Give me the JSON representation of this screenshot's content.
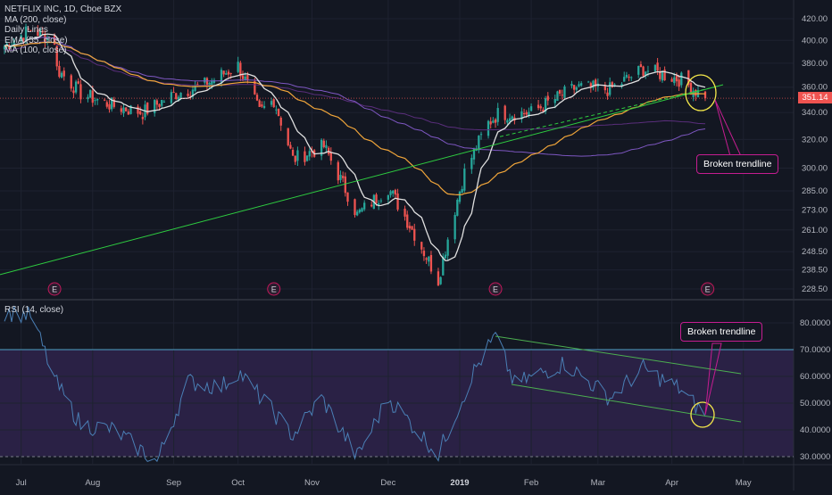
{
  "header": {
    "title": "NETFLIX INC, 1D, Cboe BZX",
    "indicators": [
      "MA (200, close)",
      "Daily Lines",
      "EMA (55, close)",
      "MA (100, close)"
    ]
  },
  "rsi_panel": {
    "label": "RSI (14, close)"
  },
  "last_price": {
    "value": "351.14",
    "color": "#ef5350"
  },
  "annotations": {
    "price": "Broken trendline",
    "rsi": "Broken trendline"
  },
  "earnings_marker": "E",
  "colors": {
    "background": "#131722",
    "up": "#26a69a",
    "down": "#ef5350",
    "ma_fast": "#e0e0e0",
    "ema55": "#f0a53a",
    "ma100": "#7e57c2",
    "ma200": "#5a2e7c",
    "trendline": "#2ecc40",
    "rsi_line": "#4a7fb5",
    "rsi_band": "#2a2145",
    "annotation_border": "#c51d91",
    "highlight": "#f4e84a"
  },
  "chart_data": [
    {
      "type": "candlestick",
      "title": "NETFLIX INC, 1D, Cboe BZX",
      "series_names": [
        "MA (200, close)",
        "Daily Lines",
        "EMA (55, close)",
        "MA (100, close)"
      ],
      "x_ticks": [
        "Jul",
        "Aug",
        "Sep",
        "Oct",
        "Nov",
        "Dec",
        "2019",
        "Feb",
        "Mar",
        "Apr",
        "May"
      ],
      "y_ticks": [
        "420.00",
        "400.00",
        "380.00",
        "360.00",
        "340.00",
        "320.00",
        "300.00",
        "285.00",
        "273.00",
        "261.00",
        "248.50",
        "238.50",
        "228.50"
      ],
      "y_axis_scale": "log",
      "last_price": 351.14,
      "earnings_markers": [
        "Jul",
        "Oct",
        "2019",
        "Apr"
      ],
      "approx_close_path": [
        {
          "date": "2018-06-25",
          "close": 395
        },
        {
          "date": "2018-07-06",
          "close": 410
        },
        {
          "date": "2018-07-16",
          "close": 400
        },
        {
          "date": "2018-07-17",
          "close": 375
        },
        {
          "date": "2018-07-27",
          "close": 355
        },
        {
          "date": "2018-08-10",
          "close": 345
        },
        {
          "date": "2018-08-22",
          "close": 340
        },
        {
          "date": "2018-09-05",
          "close": 355
        },
        {
          "date": "2018-09-17",
          "close": 362
        },
        {
          "date": "2018-10-01",
          "close": 378
        },
        {
          "date": "2018-10-10",
          "close": 340
        },
        {
          "date": "2018-10-16",
          "close": 350
        },
        {
          "date": "2018-10-24",
          "close": 306
        },
        {
          "date": "2018-11-06",
          "close": 315
        },
        {
          "date": "2018-11-20",
          "close": 270
        },
        {
          "date": "2018-12-03",
          "close": 287
        },
        {
          "date": "2018-12-24",
          "close": 233
        },
        {
          "date": "2019-01-04",
          "close": 297
        },
        {
          "date": "2019-01-14",
          "close": 332
        },
        {
          "date": "2019-01-18",
          "close": 339
        },
        {
          "date": "2019-02-01",
          "close": 340
        },
        {
          "date": "2019-02-20",
          "close": 360
        },
        {
          "date": "2019-03-06",
          "close": 358
        },
        {
          "date": "2019-03-20",
          "close": 375
        },
        {
          "date": "2019-04-05",
          "close": 366
        },
        {
          "date": "2019-04-15",
          "close": 351.14
        }
      ]
    },
    {
      "type": "line",
      "title": "RSI (14, close)",
      "y_ticks": [
        "80.0000",
        "70.0000",
        "60.0000",
        "50.0000",
        "40.0000",
        "30.0000"
      ],
      "ylim": [
        27,
        85
      ],
      "band": [
        30,
        70
      ],
      "approx_path": [
        {
          "date": "2018-06-25",
          "rsi": 84
        },
        {
          "date": "2018-07-06",
          "rsi": 83
        },
        {
          "date": "2018-07-17",
          "rsi": 57
        },
        {
          "date": "2018-07-27",
          "rsi": 42
        },
        {
          "date": "2018-08-10",
          "rsi": 40
        },
        {
          "date": "2018-08-28",
          "rsi": 28
        },
        {
          "date": "2018-09-10",
          "rsi": 58
        },
        {
          "date": "2018-09-24",
          "rsi": 56
        },
        {
          "date": "2018-10-01",
          "rsi": 62
        },
        {
          "date": "2018-10-24",
          "rsi": 38
        },
        {
          "date": "2018-11-05",
          "rsi": 52
        },
        {
          "date": "2018-11-20",
          "rsi": 30
        },
        {
          "date": "2018-12-03",
          "rsi": 52
        },
        {
          "date": "2018-12-24",
          "rsi": 31
        },
        {
          "date": "2019-01-08",
          "rsi": 62
        },
        {
          "date": "2019-01-17",
          "rsi": 75
        },
        {
          "date": "2019-01-25",
          "rsi": 57
        },
        {
          "date": "2019-02-15",
          "rsi": 65
        },
        {
          "date": "2019-03-06",
          "rsi": 52
        },
        {
          "date": "2019-03-20",
          "rsi": 63
        },
        {
          "date": "2019-04-05",
          "rsi": 55
        },
        {
          "date": "2019-04-15",
          "rsi": 45
        }
      ]
    }
  ]
}
